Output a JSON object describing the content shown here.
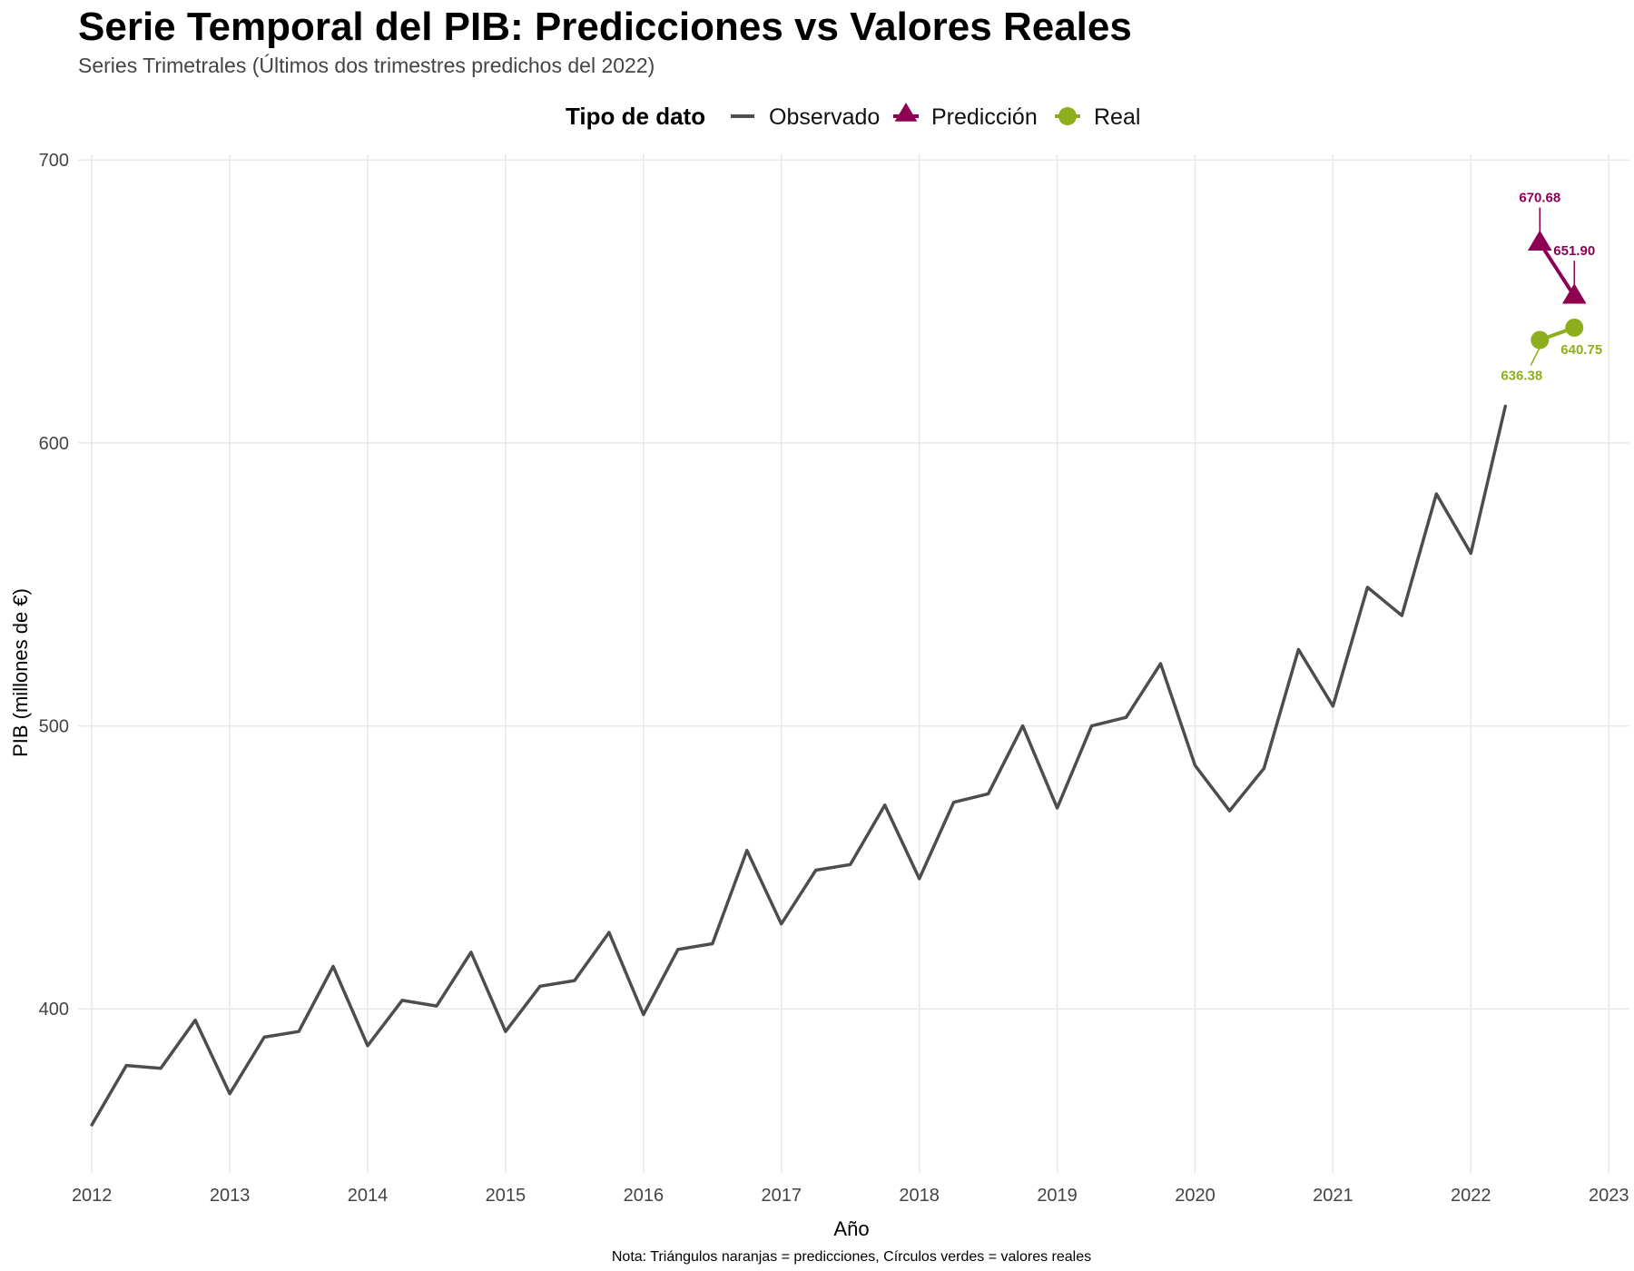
{
  "chart_data": {
    "type": "line",
    "title": "Serie Temporal del PIB: Predicciones vs Valores Reales",
    "subtitle": "Series Trimetrales (Últimos dos trimestres predichos del 2022)",
    "xlabel": "Año",
    "ylabel": "PIB (millones de €)",
    "caption": "Nota: Triángulos naranjas = predicciones, Círculos verdes = valores reales",
    "legend": {
      "title": "Tipo de dato",
      "position": "top"
    },
    "xlim": [
      2011.9,
      2023.15
    ],
    "ylim": [
      342,
      702
    ],
    "x_ticks": [
      2012,
      2013,
      2014,
      2015,
      2016,
      2017,
      2018,
      2019,
      2020,
      2021,
      2022,
      2023
    ],
    "y_ticks": [
      400,
      500,
      600,
      700
    ],
    "grid": true,
    "series": [
      {
        "name": "Observado",
        "color": "#4d4d4d",
        "marker": "none",
        "x": [
          2012.0,
          2012.25,
          2012.5,
          2012.75,
          2013.0,
          2013.25,
          2013.5,
          2013.75,
          2014.0,
          2014.25,
          2014.5,
          2014.75,
          2015.0,
          2015.25,
          2015.5,
          2015.75,
          2016.0,
          2016.25,
          2016.5,
          2016.75,
          2017.0,
          2017.25,
          2017.5,
          2017.75,
          2018.0,
          2018.25,
          2018.5,
          2018.75,
          2019.0,
          2019.25,
          2019.5,
          2019.75,
          2020.0,
          2020.25,
          2020.5,
          2020.75,
          2021.0,
          2021.25,
          2021.5,
          2021.75,
          2022.0,
          2022.25
        ],
        "y": [
          359,
          380,
          379,
          396,
          370,
          390,
          392,
          415,
          387,
          403,
          401,
          420,
          392,
          408,
          410,
          427,
          398,
          421,
          423,
          456,
          430,
          449,
          451,
          472,
          446,
          473,
          476,
          500,
          471,
          500,
          503,
          522,
          486,
          470,
          485,
          527,
          507,
          549,
          539,
          582,
          561,
          613
        ]
      },
      {
        "name": "Predicción",
        "color": "#8e0152",
        "marker": "triangle",
        "x": [
          2022.5,
          2022.75
        ],
        "y": [
          670.68,
          651.9
        ],
        "labels": [
          "670.68",
          "651.90"
        ]
      },
      {
        "name": "Real",
        "color": "#8fae1b",
        "marker": "circle",
        "x": [
          2022.5,
          2022.75
        ],
        "y": [
          636.38,
          640.75
        ],
        "labels": [
          "636.38",
          "640.75"
        ]
      }
    ]
  }
}
